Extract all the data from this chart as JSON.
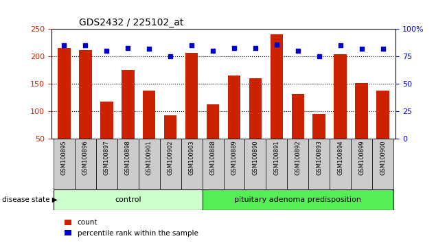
{
  "title": "GDS2432 / 225102_at",
  "samples": [
    "GSM100895",
    "GSM100896",
    "GSM100897",
    "GSM100898",
    "GSM100901",
    "GSM100902",
    "GSM100903",
    "GSM100888",
    "GSM100889",
    "GSM100890",
    "GSM100891",
    "GSM100892",
    "GSM100893",
    "GSM100894",
    "GSM100899",
    "GSM100900"
  ],
  "counts": [
    215,
    212,
    118,
    175,
    137,
    92,
    207,
    112,
    165,
    160,
    240,
    131,
    95,
    204,
    152,
    138
  ],
  "percentiles": [
    85,
    85,
    80,
    83,
    82,
    75,
    85,
    80,
    83,
    83,
    86,
    80,
    75,
    85,
    82,
    82
  ],
  "groups": [
    {
      "label": "control",
      "start": 0,
      "end": 7,
      "color": "#ccffcc"
    },
    {
      "label": "pituitary adenoma predisposition",
      "start": 7,
      "end": 16,
      "color": "#55ee55"
    }
  ],
  "ylim_left": [
    50,
    250
  ],
  "ylim_right": [
    0,
    100
  ],
  "yticks_left": [
    50,
    100,
    150,
    200,
    250
  ],
  "yticks_right": [
    0,
    25,
    50,
    75,
    100
  ],
  "ytick_labels_right": [
    "0",
    "25",
    "50",
    "75",
    "100%"
  ],
  "bar_color": "#cc2200",
  "dot_color": "#0000cc",
  "grid_color": "black",
  "background_color": "#ffffff",
  "left_axis_color": "#cc2200",
  "right_axis_color": "#0000cc",
  "bar_width": 0.6,
  "dot_size": 18,
  "disease_label": "disease state"
}
